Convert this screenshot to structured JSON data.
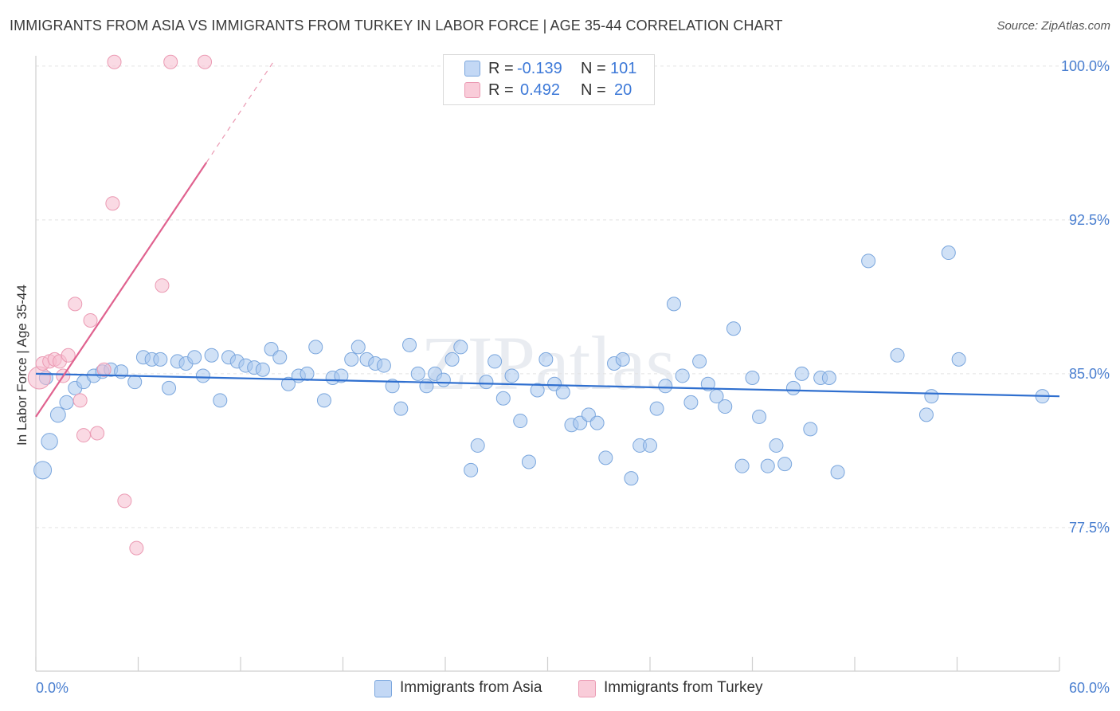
{
  "title": "IMMIGRANTS FROM ASIA VS IMMIGRANTS FROM TURKEY IN LABOR FORCE | AGE 35-44 CORRELATION CHART",
  "source": "Source: ZipAtlas.com",
  "watermark": "ZIPatlas",
  "legend_top": {
    "rows": [
      {
        "r_label": "R =",
        "r_value": "-0.139",
        "n_label": "N =",
        "n_value": "101"
      },
      {
        "r_label": "R =",
        "r_value": "0.492",
        "n_label": "N =",
        "n_value": "20"
      }
    ]
  },
  "legend_bottom": {
    "asia": "Immigrants from Asia",
    "turkey": "Immigrants from Turkey"
  },
  "colors": {
    "asia_fill": "#a9c8ef",
    "asia_stroke": "#7aa6dd",
    "asia_line": "#2f6fcf",
    "turkey_fill": "#f6bccd",
    "turkey_stroke": "#eb9ab3",
    "turkey_line": "#e0628f",
    "tick_text": "#4a7fd0",
    "grid": "#e3e3e3"
  },
  "chart_data": {
    "type": "scatter",
    "title": "IMMIGRANTS FROM ASIA VS IMMIGRANTS FROM TURKEY IN LABOR FORCE | AGE 35-44 CORRELATION CHART",
    "xlabel": "",
    "ylabel": "In Labor Force | Age 35-44",
    "xlim": [
      0,
      60
    ],
    "ylim": [
      70.5,
      100.5
    ],
    "x_tick_labels": [
      "0.0%",
      "60.0%"
    ],
    "y_ticks": [
      77.5,
      85.0,
      92.5,
      100.0
    ],
    "y_tick_labels": [
      "77.5%",
      "85.0%",
      "92.5%",
      "100.0%"
    ],
    "grid": true,
    "legend_position": "top-center",
    "series": [
      {
        "name": "Immigrants from Asia",
        "trend": {
          "x": [
            0,
            60
          ],
          "y": [
            85.0,
            83.9
          ]
        },
        "points": [
          [
            0.4,
            80.3
          ],
          [
            0.8,
            81.7
          ],
          [
            1.3,
            83.0
          ],
          [
            1.8,
            83.6
          ],
          [
            2.3,
            84.3
          ],
          [
            2.8,
            84.6
          ],
          [
            3.4,
            84.9
          ],
          [
            3.9,
            85.1
          ],
          [
            4.4,
            85.2
          ],
          [
            5.0,
            85.1
          ],
          [
            5.8,
            84.6
          ],
          [
            6.3,
            85.8
          ],
          [
            6.8,
            85.7
          ],
          [
            7.3,
            85.7
          ],
          [
            7.8,
            84.3
          ],
          [
            8.3,
            85.6
          ],
          [
            8.8,
            85.5
          ],
          [
            9.3,
            85.8
          ],
          [
            9.8,
            84.9
          ],
          [
            10.3,
            85.9
          ],
          [
            10.8,
            83.7
          ],
          [
            11.3,
            85.8
          ],
          [
            11.8,
            85.6
          ],
          [
            12.3,
            85.4
          ],
          [
            12.8,
            85.3
          ],
          [
            13.3,
            85.2
          ],
          [
            13.8,
            86.2
          ],
          [
            14.3,
            85.8
          ],
          [
            14.8,
            84.5
          ],
          [
            15.4,
            84.9
          ],
          [
            15.9,
            85.0
          ],
          [
            16.4,
            86.3
          ],
          [
            16.9,
            83.7
          ],
          [
            17.4,
            84.8
          ],
          [
            17.9,
            84.9
          ],
          [
            18.5,
            85.7
          ],
          [
            18.9,
            86.3
          ],
          [
            19.4,
            85.7
          ],
          [
            19.9,
            85.5
          ],
          [
            20.4,
            85.4
          ],
          [
            20.9,
            84.4
          ],
          [
            21.4,
            83.3
          ],
          [
            21.9,
            86.4
          ],
          [
            22.4,
            85.0
          ],
          [
            22.9,
            84.4
          ],
          [
            23.4,
            85.0
          ],
          [
            23.9,
            84.7
          ],
          [
            24.4,
            85.7
          ],
          [
            24.9,
            86.3
          ],
          [
            25.5,
            80.3
          ],
          [
            25.9,
            81.5
          ],
          [
            26.4,
            84.6
          ],
          [
            26.9,
            85.6
          ],
          [
            27.4,
            83.8
          ],
          [
            27.9,
            84.9
          ],
          [
            28.4,
            82.7
          ],
          [
            28.9,
            80.7
          ],
          [
            29.4,
            84.2
          ],
          [
            29.9,
            85.7
          ],
          [
            30.4,
            84.5
          ],
          [
            30.9,
            84.1
          ],
          [
            31.4,
            82.5
          ],
          [
            31.9,
            82.6
          ],
          [
            32.4,
            83.0
          ],
          [
            32.9,
            82.6
          ],
          [
            33.4,
            80.9
          ],
          [
            33.9,
            85.5
          ],
          [
            34.4,
            85.7
          ],
          [
            34.9,
            79.9
          ],
          [
            35.4,
            81.5
          ],
          [
            36.0,
            81.5
          ],
          [
            36.4,
            83.3
          ],
          [
            36.9,
            84.4
          ],
          [
            37.4,
            88.4
          ],
          [
            37.9,
            84.9
          ],
          [
            38.4,
            83.6
          ],
          [
            38.9,
            85.6
          ],
          [
            39.4,
            84.5
          ],
          [
            39.9,
            83.9
          ],
          [
            40.4,
            83.4
          ],
          [
            40.9,
            87.2
          ],
          [
            41.4,
            80.5
          ],
          [
            42.0,
            84.8
          ],
          [
            42.4,
            82.9
          ],
          [
            42.9,
            80.5
          ],
          [
            43.4,
            81.5
          ],
          [
            43.9,
            80.6
          ],
          [
            44.4,
            84.3
          ],
          [
            44.9,
            85.0
          ],
          [
            45.4,
            82.3
          ],
          [
            46.0,
            84.8
          ],
          [
            46.5,
            84.8
          ],
          [
            47.0,
            80.2
          ],
          [
            48.8,
            90.5
          ],
          [
            50.5,
            85.9
          ],
          [
            52.2,
            83.0
          ],
          [
            52.5,
            83.9
          ],
          [
            53.5,
            90.9
          ],
          [
            54.1,
            85.7
          ],
          [
            59.0,
            83.9
          ],
          [
            0.6,
            84.8
          ]
        ]
      },
      {
        "name": "Immigrants from Turkey",
        "trend": {
          "x": [
            0,
            10
          ],
          "y": [
            82.9,
            95.3
          ]
        },
        "trend_dashed": {
          "x": [
            10,
            14
          ],
          "y": [
            95.3,
            100.3
          ]
        },
        "points": [
          [
            0.2,
            84.8
          ],
          [
            0.4,
            85.5
          ],
          [
            0.8,
            85.6
          ],
          [
            1.1,
            85.7
          ],
          [
            1.4,
            85.6
          ],
          [
            1.6,
            84.9
          ],
          [
            1.9,
            85.9
          ],
          [
            2.3,
            88.4
          ],
          [
            2.6,
            83.7
          ],
          [
            2.8,
            82.0
          ],
          [
            3.2,
            87.6
          ],
          [
            3.6,
            82.1
          ],
          [
            4.0,
            85.2
          ],
          [
            4.5,
            93.3
          ],
          [
            4.6,
            100.2
          ],
          [
            5.2,
            78.8
          ],
          [
            5.9,
            76.5
          ],
          [
            7.4,
            89.3
          ],
          [
            7.9,
            100.2
          ],
          [
            9.9,
            100.2
          ]
        ]
      }
    ]
  }
}
